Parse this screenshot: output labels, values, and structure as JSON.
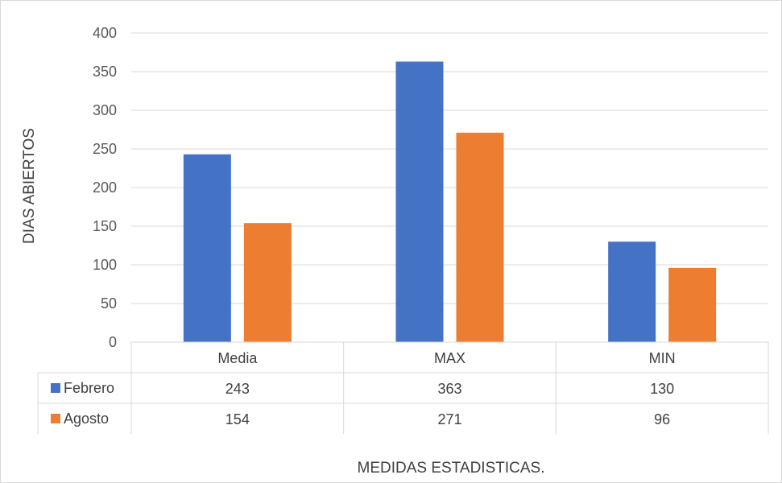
{
  "chart_data": {
    "type": "bar",
    "title": "",
    "xlabel": "MEDIDAS ESTADISTICAS.",
    "ylabel": "DIAS ABIERTOS",
    "categories": [
      "Media",
      "MAX",
      "MIN"
    ],
    "series": [
      {
        "name": "Febrero",
        "values": [
          243,
          363,
          130
        ],
        "color": "#4472C4"
      },
      {
        "name": "Agosto",
        "values": [
          154,
          271,
          96
        ],
        "color": "#ED7D31"
      }
    ],
    "ylim": [
      0,
      400
    ],
    "yticks": [
      "0",
      "50",
      "100",
      "150",
      "200",
      "250",
      "300",
      "350",
      "400"
    ],
    "grid": true,
    "legend": "data-table",
    "data_table": [
      {
        "series": "Febrero",
        "cells": [
          "243",
          "363",
          "130"
        ]
      },
      {
        "series": "Agosto",
        "cells": [
          "154",
          "271",
          "96"
        ]
      }
    ]
  }
}
